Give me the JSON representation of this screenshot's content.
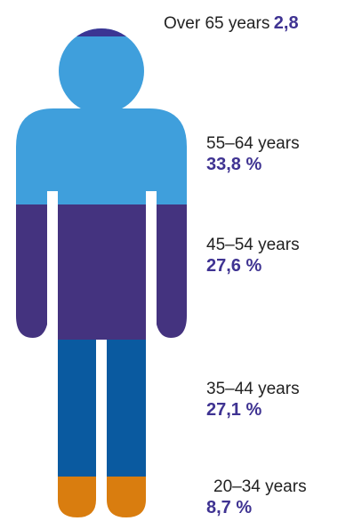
{
  "chart_data": {
    "type": "pictogram",
    "categories": [
      "Over 65 years",
      "55–64 years",
      "45–54 years",
      "35–44 years",
      "20–34 years"
    ],
    "value_labels": [
      "2,8",
      "33,8 %",
      "27,6 %",
      "27,1 %",
      "8,7 %"
    ],
    "values": [
      2.8,
      33.8,
      27.6,
      27.1,
      8.7
    ],
    "unit": "%",
    "colors": {
      "over65": "#3b3593",
      "age55_64": "#3f9fdc",
      "age45_54": "#44337f",
      "age35_44": "#0a5aa0",
      "age20_34": "#d97d0f"
    }
  }
}
